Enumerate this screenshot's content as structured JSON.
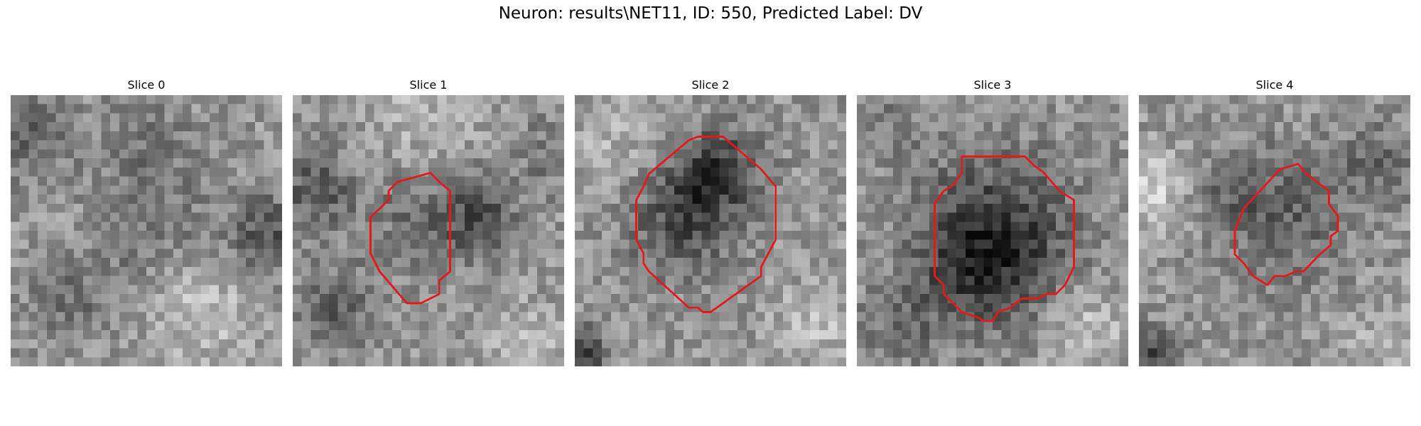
{
  "figure": {
    "title": "Neuron: results\\NET11, ID: 550, Predicted Label: DV",
    "contour_color": "#e21a1a"
  },
  "slices": [
    {
      "title": "Slice 0"
    },
    {
      "title": "Slice 1"
    },
    {
      "title": "Slice 2"
    },
    {
      "title": "Slice 3"
    },
    {
      "title": "Slice 4"
    }
  ]
}
